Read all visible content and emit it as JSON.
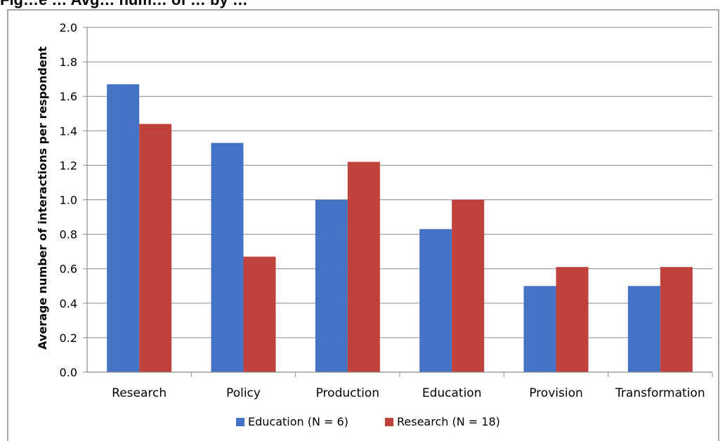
{
  "chart_data": {
    "type": "bar",
    "title": "Fig…e … Avg… num… of … by …",
    "xlabel": "",
    "ylabel": "Average number of interactions per respondent",
    "categories": [
      "Research",
      "Policy",
      "Production",
      "Education",
      "Provision",
      "Transformation"
    ],
    "series": [
      {
        "name": "Education (N = 6)",
        "color": "#4472C4",
        "values": [
          1.67,
          1.33,
          1.0,
          0.83,
          0.5,
          0.5
        ]
      },
      {
        "name": "Research (N = 18)",
        "color": "#C0403C",
        "values": [
          1.44,
          0.67,
          1.22,
          1.0,
          0.61,
          0.61
        ]
      }
    ],
    "ylim": [
      0,
      2.0
    ],
    "yticks": [
      "0.0",
      "0.2",
      "0.4",
      "0.6",
      "0.8",
      "1.0",
      "1.2",
      "1.4",
      "1.6",
      "1.8",
      "2.0"
    ],
    "grid": true,
    "legend_position": "bottom"
  }
}
